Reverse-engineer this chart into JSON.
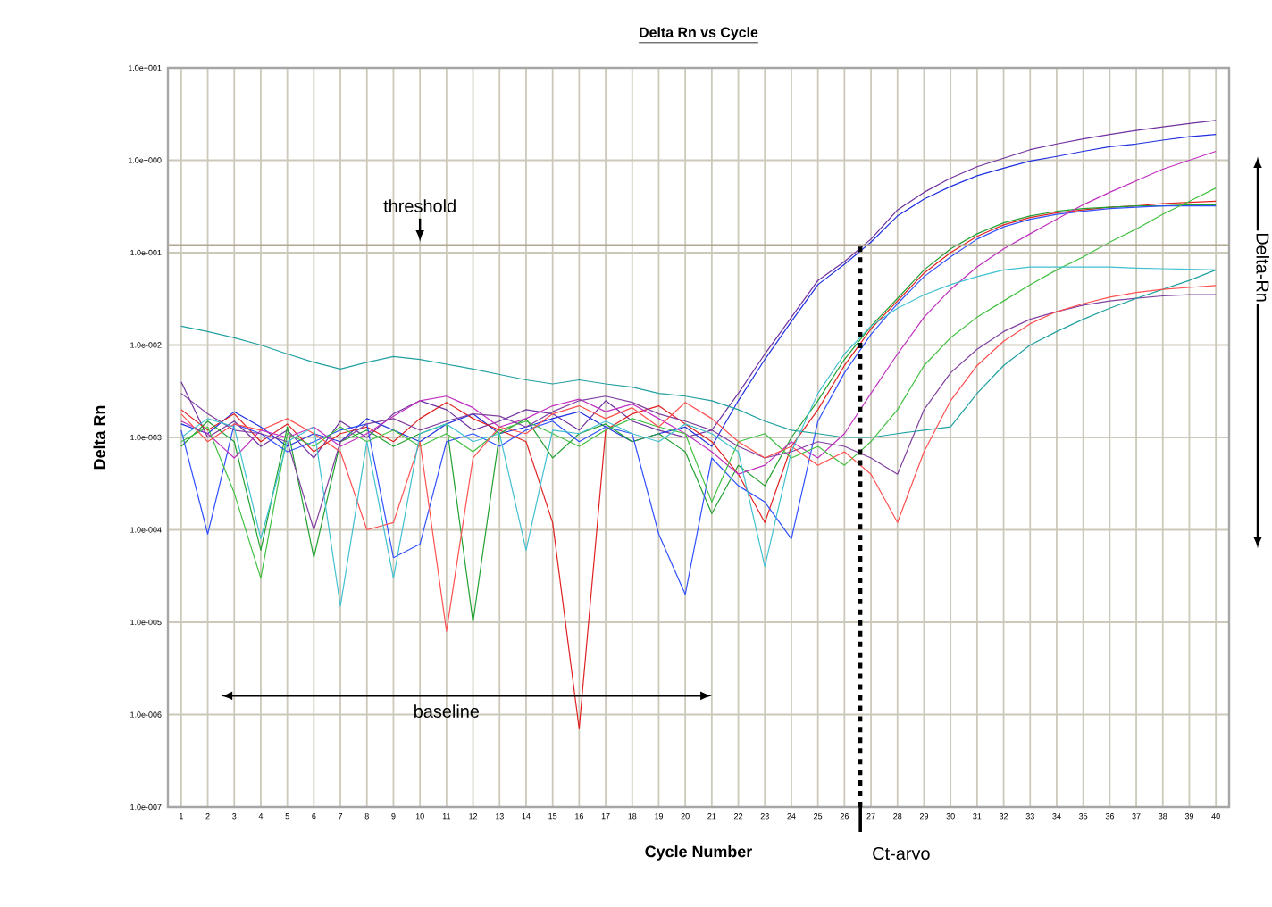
{
  "chart_data": {
    "type": "line",
    "title": "Delta Rn vs Cycle",
    "xlabel": "Cycle Number",
    "ylabel": "Delta Rn",
    "log": "y",
    "grid": true,
    "marker": "none",
    "line_style": "solid",
    "xlim": [
      0.5,
      40.5
    ],
    "ylim": [
      1e-07,
      10
    ],
    "xticks": [
      1,
      2,
      3,
      4,
      5,
      6,
      7,
      8,
      9,
      10,
      11,
      12,
      13,
      14,
      15,
      16,
      17,
      18,
      19,
      20,
      21,
      22,
      23,
      24,
      25,
      26,
      27,
      28,
      29,
      30,
      31,
      32,
      33,
      34,
      35,
      36,
      37,
      38,
      39,
      40
    ],
    "yticks": [
      {
        "value": 1e-07,
        "label": "1.0e-007"
      },
      {
        "value": 1e-06,
        "label": "1.0e-006"
      },
      {
        "value": 1e-05,
        "label": "1.0e-005"
      },
      {
        "value": 0.0001,
        "label": "1.0e-004"
      },
      {
        "value": 0.001,
        "label": "1.0e-003"
      },
      {
        "value": 0.01,
        "label": "1.0e-002"
      },
      {
        "value": 0.1,
        "label": "1.0e-001"
      },
      {
        "value": 1,
        "label": "1.0e+000"
      },
      {
        "value": 10,
        "label": "1.0e+001"
      }
    ],
    "x": [
      1,
      2,
      3,
      4,
      5,
      6,
      7,
      8,
      9,
      10,
      11,
      12,
      13,
      14,
      15,
      16,
      17,
      18,
      19,
      20,
      21,
      22,
      23,
      24,
      25,
      26,
      27,
      28,
      29,
      30,
      31,
      32,
      33,
      34,
      35,
      36,
      37,
      38,
      39,
      40
    ],
    "ref_lines": [
      {
        "axis": "y",
        "value": 0.12,
        "label": "threshold",
        "color": "#b0a890",
        "line_style": "solid"
      },
      {
        "axis": "x",
        "value": 26.6,
        "label": "Ct-arvo",
        "color": "#000000",
        "line_style": "dashed"
      }
    ],
    "annotations": [
      "baseline",
      "Delta-Rn"
    ],
    "series": [
      {
        "color": "#7030a0",
        "values": [
          0.004,
          0.001,
          0.0015,
          0.0008,
          0.0012,
          0.0006,
          0.0015,
          0.001,
          0.0018,
          0.0025,
          0.002,
          0.0012,
          0.0015,
          0.002,
          0.0018,
          0.0012,
          0.0025,
          0.0015,
          0.0012,
          0.001,
          0.0012,
          0.003,
          0.008,
          0.02,
          0.05,
          0.08,
          0.14,
          0.29,
          0.45,
          0.64,
          0.85,
          1.05,
          1.3,
          1.5,
          1.7,
          1.9,
          2.1,
          2.3,
          2.5,
          2.7
        ]
      },
      {
        "color": "#2030e0",
        "values": [
          0.0014,
          0.0011,
          0.0019,
          0.0013,
          0.0008,
          0.0011,
          0.0009,
          0.0016,
          0.0012,
          0.0009,
          0.0014,
          0.0018,
          0.0011,
          0.0013,
          0.0016,
          0.0019,
          0.0013,
          0.0009,
          0.0011,
          0.0013,
          0.0008,
          0.0025,
          0.007,
          0.018,
          0.045,
          0.075,
          0.13,
          0.25,
          0.38,
          0.52,
          0.68,
          0.82,
          0.98,
          1.1,
          1.25,
          1.4,
          1.5,
          1.65,
          1.8,
          1.9
        ]
      },
      {
        "color": "#e02020",
        "values": [
          0.002,
          0.0012,
          0.0018,
          0.0009,
          0.0014,
          0.0007,
          0.0011,
          0.0013,
          0.0009,
          0.0016,
          0.0024,
          0.0016,
          0.0012,
          0.0009,
          0.00012,
          7e-07,
          0.0012,
          0.0018,
          0.0022,
          0.0014,
          0.0009,
          0.0004,
          0.00012,
          0.0008,
          0.002,
          0.006,
          0.015,
          0.03,
          0.06,
          0.1,
          0.15,
          0.2,
          0.24,
          0.27,
          0.29,
          0.31,
          0.32,
          0.34,
          0.35,
          0.36
        ]
      },
      {
        "color": "#20a030",
        "values": [
          0.0008,
          0.0015,
          0.0009,
          6e-05,
          0.0013,
          5e-05,
          0.0009,
          0.0012,
          0.0008,
          0.0011,
          0.0014,
          1e-05,
          0.0011,
          0.0016,
          0.0006,
          0.0011,
          0.0014,
          0.0009,
          0.0011,
          0.0007,
          0.00015,
          0.0005,
          0.0003,
          0.001,
          0.0025,
          0.007,
          0.016,
          0.032,
          0.065,
          0.11,
          0.16,
          0.21,
          0.25,
          0.28,
          0.3,
          0.31,
          0.32,
          0.32,
          0.33,
          0.33
        ]
      },
      {
        "color": "#3050ff",
        "values": [
          0.0012,
          9e-05,
          0.0014,
          0.0011,
          0.0007,
          0.0009,
          0.0012,
          0.0014,
          5e-05,
          7e-05,
          0.0009,
          0.0011,
          0.0008,
          0.0012,
          0.0015,
          0.0009,
          0.0013,
          0.0011,
          9e-05,
          2e-05,
          0.0006,
          0.0003,
          0.0002,
          8e-05,
          0.0015,
          0.005,
          0.013,
          0.028,
          0.055,
          0.09,
          0.14,
          0.19,
          0.23,
          0.26,
          0.28,
          0.3,
          0.31,
          0.32,
          0.32,
          0.32
        ]
      },
      {
        "color": "#c030c0",
        "values": [
          0.0015,
          0.0011,
          0.0006,
          0.0012,
          0.001,
          0.0013,
          0.0008,
          0.0011,
          0.0017,
          0.0025,
          0.0028,
          0.0021,
          0.0013,
          0.0016,
          0.0022,
          0.0026,
          0.0019,
          0.0023,
          0.0016,
          0.0011,
          0.0007,
          0.0004,
          0.0005,
          0.0009,
          0.0006,
          0.0011,
          0.003,
          0.008,
          0.02,
          0.04,
          0.07,
          0.11,
          0.16,
          0.23,
          0.33,
          0.45,
          0.6,
          0.8,
          1.0,
          1.25
        ]
      },
      {
        "color": "#40c040",
        "values": [
          0.0009,
          0.0013,
          0.00025,
          3e-05,
          0.0011,
          0.0008,
          0.0013,
          0.0009,
          0.0012,
          0.0008,
          0.0011,
          0.0007,
          0.0012,
          0.0015,
          0.0011,
          0.0008,
          0.0012,
          0.0016,
          0.0013,
          0.0011,
          0.0002,
          0.0009,
          0.0011,
          0.0006,
          0.0008,
          0.0005,
          0.0009,
          0.002,
          0.006,
          0.012,
          0.02,
          0.03,
          0.045,
          0.065,
          0.09,
          0.13,
          0.18,
          0.26,
          0.36,
          0.5
        ]
      },
      {
        "color": "#8040a0",
        "values": [
          0.003,
          0.0018,
          0.0012,
          0.0011,
          0.0009,
          0.0001,
          0.0009,
          0.0014,
          0.0016,
          0.0012,
          0.0015,
          0.0018,
          0.0017,
          0.0013,
          0.0019,
          0.0025,
          0.0028,
          0.0024,
          0.0018,
          0.0015,
          0.0012,
          0.0008,
          0.0006,
          0.0007,
          0.0009,
          0.0008,
          0.0006,
          0.0004,
          0.002,
          0.005,
          0.009,
          0.014,
          0.019,
          0.023,
          0.027,
          0.03,
          0.032,
          0.034,
          0.035,
          0.035
        ]
      },
      {
        "color": "#20a0a0",
        "values": [
          0.016,
          0.014,
          0.012,
          0.01,
          0.008,
          0.0065,
          0.0055,
          0.0065,
          0.0075,
          0.007,
          0.0062,
          0.0055,
          0.0048,
          0.0042,
          0.0038,
          0.0042,
          0.0038,
          0.0035,
          0.003,
          0.0028,
          0.0025,
          0.002,
          0.0015,
          0.0012,
          0.0011,
          0.001,
          0.001,
          0.0011,
          0.0012,
          0.0013,
          0.003,
          0.006,
          0.01,
          0.014,
          0.019,
          0.025,
          0.032,
          0.04,
          0.05,
          0.065
        ]
      },
      {
        "color": "#ff5050",
        "values": [
          0.0018,
          0.0009,
          0.0014,
          0.0012,
          0.0016,
          0.0011,
          0.0007,
          0.0001,
          0.00012,
          0.0009,
          8e-06,
          0.0006,
          0.0013,
          0.0011,
          0.0018,
          0.0022,
          0.0016,
          0.0021,
          0.0013,
          0.0024,
          0.0016,
          0.0009,
          0.0006,
          0.0008,
          0.0005,
          0.0007,
          0.0004,
          0.00012,
          0.0007,
          0.0025,
          0.006,
          0.011,
          0.017,
          0.023,
          0.028,
          0.033,
          0.037,
          0.04,
          0.042,
          0.044
        ]
      },
      {
        "color": "#40c0d0",
        "values": [
          0.001,
          0.0016,
          0.0013,
          8e-05,
          0.0009,
          0.0013,
          1.5e-05,
          0.0009,
          3e-05,
          0.0011,
          0.0014,
          0.0009,
          0.0011,
          6e-05,
          0.0012,
          0.0011,
          0.0015,
          0.0011,
          0.0009,
          0.0014,
          0.0011,
          0.0007,
          4e-05,
          0.0007,
          0.003,
          0.008,
          0.016,
          0.025,
          0.035,
          0.045,
          0.055,
          0.065,
          0.07,
          0.07,
          0.07,
          0.07,
          0.068,
          0.067,
          0.066,
          0.065
        ]
      }
    ]
  }
}
